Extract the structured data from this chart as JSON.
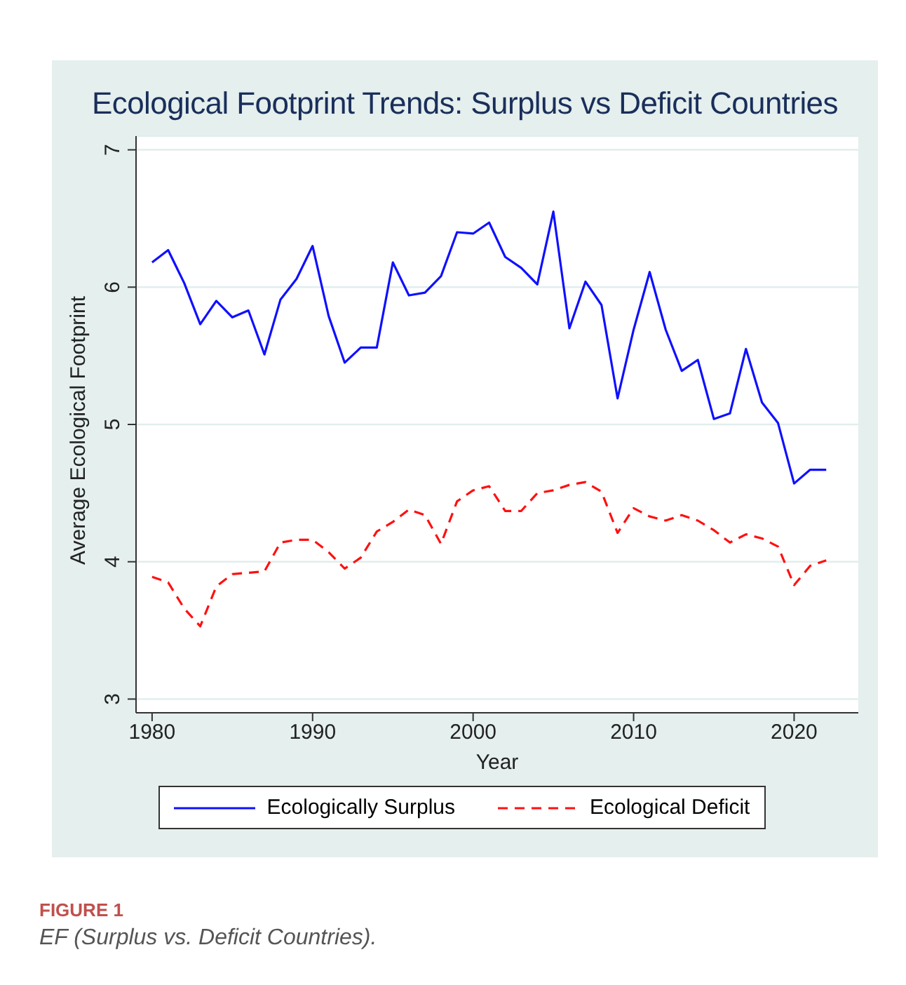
{
  "chart_data": {
    "type": "line",
    "title": "Ecological Footprint Trends: Surplus vs Deficit Countries",
    "xlabel": "Year",
    "ylabel": "Average Ecological Footprint",
    "annotations": [
      "FIGURE 1",
      "EF (Surplus vs. Deficit Countries)."
    ],
    "x": [
      1980,
      1981,
      1982,
      1983,
      1984,
      1985,
      1986,
      1987,
      1988,
      1989,
      1990,
      1991,
      1992,
      1993,
      1994,
      1995,
      1996,
      1997,
      1998,
      1999,
      2000,
      2001,
      2002,
      2003,
      2004,
      2005,
      2006,
      2007,
      2008,
      2009,
      2010,
      2011,
      2012,
      2013,
      2014,
      2015,
      2016,
      2017,
      2018,
      2019,
      2020,
      2021,
      2022
    ],
    "series": [
      {
        "name": "Ecologically Surplus",
        "color": "#1010ff",
        "line_style": "solid",
        "values": [
          6.18,
          6.27,
          6.03,
          5.73,
          5.9,
          5.78,
          5.83,
          5.51,
          5.91,
          6.06,
          6.3,
          5.79,
          5.45,
          5.56,
          5.56,
          6.18,
          5.94,
          5.96,
          6.08,
          6.4,
          6.39,
          6.47,
          6.22,
          6.14,
          6.02,
          6.55,
          5.7,
          6.04,
          5.87,
          5.19,
          5.69,
          6.11,
          5.69,
          5.39,
          5.47,
          5.04,
          5.08,
          5.55,
          5.16,
          5.01,
          4.57,
          4.67,
          4.67
        ]
      },
      {
        "name": "Ecological Deficit",
        "color": "#ff1010",
        "line_style": "dashed",
        "values": [
          3.89,
          3.85,
          3.66,
          3.53,
          3.82,
          3.91,
          3.92,
          3.93,
          4.14,
          4.16,
          4.16,
          4.07,
          3.95,
          4.03,
          4.22,
          4.29,
          4.38,
          4.34,
          4.13,
          4.44,
          4.52,
          4.55,
          4.37,
          4.37,
          4.5,
          4.52,
          4.56,
          4.58,
          4.51,
          4.21,
          4.39,
          4.33,
          4.3,
          4.34,
          4.3,
          4.23,
          4.14,
          4.2,
          4.17,
          4.11,
          3.83,
          3.97,
          4.01
        ]
      }
    ],
    "xlim": [
      1979,
      2024
    ],
    "xticks": [
      1980,
      1990,
      2000,
      2010,
      2020
    ],
    "ylim": [
      2.9,
      7.1
    ],
    "yticks": [
      3,
      4,
      5,
      6,
      7
    ],
    "grid": "y",
    "legend": "bottom",
    "marker": "none"
  }
}
